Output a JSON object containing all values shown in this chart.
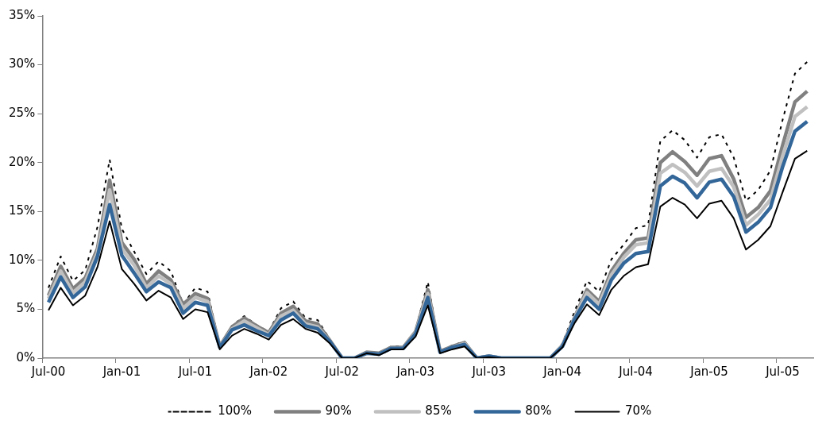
{
  "chart_data": {
    "type": "line",
    "categories": [
      "Jul-00",
      null,
      null,
      null,
      null,
      null,
      "Jan-01",
      null,
      null,
      null,
      null,
      null,
      "Jul-01",
      null,
      null,
      null,
      null,
      null,
      "Jan-02",
      null,
      null,
      null,
      null,
      null,
      "Jul-02",
      null,
      null,
      null,
      null,
      null,
      "Jan-03",
      null,
      null,
      null,
      null,
      null,
      "Jul-03",
      null,
      null,
      null,
      null,
      null,
      "Jan-04",
      null,
      null,
      null,
      null,
      null,
      "Jul-04",
      null,
      null,
      null,
      null,
      null,
      "Jan-05",
      null,
      null,
      null,
      null,
      null,
      "Jul-05",
      null,
      null
    ],
    "series": [
      {
        "name": "100%",
        "color": "#000000",
        "line_style": "dashed",
        "values": [
          7.2,
          10.4,
          7.9,
          9.0,
          13.4,
          20.3,
          13.2,
          10.9,
          8.6,
          9.9,
          8.9,
          5.5,
          7.2,
          6.8,
          1.2,
          3.3,
          4.3,
          3.4,
          2.7,
          5.1,
          5.8,
          4.1,
          3.9,
          1.9,
          0,
          0,
          0.6,
          0.5,
          1.2,
          1.2,
          2.8,
          7.8,
          0.7,
          1.3,
          1.7,
          0,
          0.2,
          0,
          0,
          0,
          0,
          0,
          1.5,
          4.8,
          7.9,
          6.8,
          10.1,
          11.6,
          13.3,
          13.6,
          22.2,
          23.3,
          22.3,
          20.5,
          22.6,
          22.9,
          20.5,
          16.1,
          17.2,
          19.2,
          24.4,
          29.1,
          30.3
        ]
      },
      {
        "name": "90%",
        "color": "#808080",
        "line_style": "solid",
        "values": [
          6.4,
          9.4,
          7.1,
          8.2,
          11.2,
          18.2,
          11.8,
          10.1,
          7.6,
          8.9,
          8.0,
          5.5,
          6.6,
          6.1,
          1.2,
          3.2,
          4.1,
          3.3,
          2.6,
          4.6,
          5.3,
          3.8,
          3.5,
          1.8,
          0,
          0,
          0.6,
          0.5,
          1.1,
          1.1,
          2.7,
          7.0,
          0.7,
          1.2,
          1.6,
          0,
          0.2,
          0,
          0,
          0,
          0,
          0,
          1.3,
          4.2,
          7.0,
          5.8,
          8.9,
          10.7,
          12.1,
          12.3,
          20.0,
          21.1,
          20.1,
          18.7,
          20.4,
          20.7,
          18.3,
          14.4,
          15.4,
          17.1,
          21.8,
          26.2,
          27.3
        ]
      },
      {
        "name": "85%",
        "color": "#c0c0c0",
        "line_style": "solid",
        "values": [
          6.1,
          8.9,
          6.7,
          7.8,
          10.8,
          17.2,
          11.2,
          9.5,
          7.2,
          8.4,
          7.6,
          5.1,
          6.2,
          5.8,
          1.1,
          3.0,
          3.8,
          3.1,
          2.4,
          4.3,
          4.9,
          3.5,
          3.2,
          1.7,
          0,
          0,
          0.5,
          0.4,
          1.0,
          1.0,
          2.6,
          6.6,
          0.6,
          1.1,
          1.5,
          0,
          0.2,
          0,
          0,
          0,
          0,
          0,
          1.3,
          4.1,
          6.7,
          5.5,
          8.5,
          10.3,
          11.6,
          11.8,
          18.9,
          19.8,
          19.0,
          17.6,
          19.1,
          19.4,
          17.5,
          13.6,
          14.7,
          16.2,
          20.7,
          24.7,
          25.7
        ]
      },
      {
        "name": "80%",
        "color": "#336699",
        "line_style": "solid",
        "values": [
          5.7,
          8.3,
          6.2,
          7.3,
          10.4,
          15.7,
          10.5,
          8.7,
          6.8,
          7.8,
          7.2,
          4.6,
          5.7,
          5.4,
          1.1,
          2.9,
          3.4,
          2.8,
          2.3,
          3.9,
          4.6,
          3.3,
          3.0,
          1.7,
          0,
          0,
          0.5,
          0.4,
          1.0,
          1.0,
          2.5,
          6.2,
          0.6,
          1.1,
          1.4,
          0,
          0.2,
          0,
          0,
          0,
          0,
          0,
          1.2,
          4.0,
          6.2,
          5.0,
          8.0,
          9.7,
          10.7,
          10.9,
          17.6,
          18.6,
          17.9,
          16.4,
          18.0,
          18.3,
          16.5,
          12.9,
          13.9,
          15.4,
          19.6,
          23.2,
          24.2
        ]
      },
      {
        "name": "70%",
        "color": "#000000",
        "line_style": "solid",
        "values": [
          4.9,
          7.2,
          5.4,
          6.4,
          9.3,
          14.0,
          9.1,
          7.6,
          5.9,
          6.9,
          6.2,
          4.0,
          5.0,
          4.7,
          0.9,
          2.3,
          3.0,
          2.5,
          1.9,
          3.4,
          4.0,
          3.0,
          2.6,
          1.5,
          0,
          0,
          0.5,
          0.3,
          0.9,
          0.9,
          2.2,
          5.4,
          0.5,
          0.9,
          1.2,
          0,
          0.1,
          0,
          0,
          0,
          0,
          0,
          1.1,
          3.6,
          5.5,
          4.4,
          7.0,
          8.4,
          9.3,
          9.6,
          15.5,
          16.4,
          15.7,
          14.3,
          15.8,
          16.1,
          14.3,
          11.1,
          12.1,
          13.5,
          17.0,
          20.4,
          21.2
        ]
      }
    ],
    "ylim": [
      0,
      35
    ],
    "yticks": [
      {
        "value": 0,
        "label": "0%"
      },
      {
        "value": 5,
        "label": "5%"
      },
      {
        "value": 10,
        "label": "10%"
      },
      {
        "value": 15,
        "label": "15%"
      },
      {
        "value": 20,
        "label": "20%"
      },
      {
        "value": 25,
        "label": "25%"
      },
      {
        "value": 30,
        "label": "30%"
      },
      {
        "value": 35,
        "label": "35%"
      }
    ],
    "grid": false,
    "legend": "bottom",
    "marker": "none"
  }
}
